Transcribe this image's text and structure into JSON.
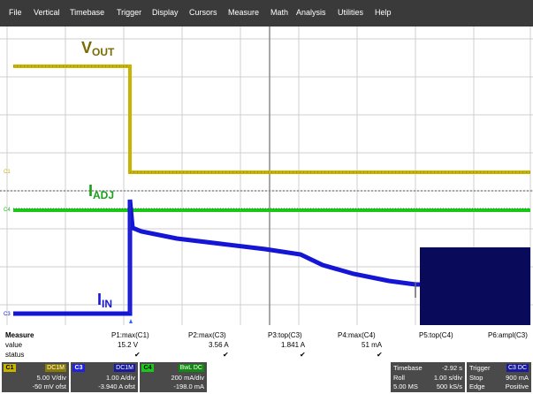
{
  "menu": [
    "File",
    "Vertical",
    "Timebase",
    "Trigger",
    "Display",
    "Cursors",
    "Measure",
    "Math",
    "Analysis",
    "Utilities",
    "Help"
  ],
  "colors": {
    "c1": "#c8b400",
    "c3": "#1010d0",
    "c4": "#19c819",
    "menubar": "#3a3a3a",
    "panel": "#4a4a4a"
  },
  "traces": {
    "vout": {
      "main": "V",
      "sub": "OUT",
      "edge_label": "C1"
    },
    "iadj": {
      "main": "I",
      "sub": "ADJ",
      "edge_label": "C4"
    },
    "iin": {
      "main": "I",
      "sub": "IN",
      "edge_label": "C3"
    }
  },
  "measure": {
    "heading": "Measure",
    "row_value": "value",
    "row_status": "status",
    "params": [
      {
        "name": "P1:max(C1)",
        "value": "15.2 V",
        "status": "✔"
      },
      {
        "name": "P2:max(C3)",
        "value": "3.56 A",
        "status": "✔"
      },
      {
        "name": "P3:top(C3)",
        "value": "1.841 A",
        "status": "✔"
      },
      {
        "name": "P4:max(C4)",
        "value": "51 mA",
        "status": "✔"
      },
      {
        "name": "P5:top(C4)",
        "value": "",
        "status": ""
      },
      {
        "name": "P6:ampl(C3)",
        "value": "",
        "status": ""
      }
    ]
  },
  "channels": [
    {
      "tag": "C1",
      "chip": "DC1M",
      "vdiv": "5.00 V/div",
      "offset": "-50 mV ofst"
    },
    {
      "tag": "C3",
      "chip": "DC1M",
      "vdiv": "1.00 A/div",
      "offset": "-3.940 A ofst"
    },
    {
      "tag": "C4",
      "chip": "BwL DC",
      "vdiv": "200 mA/div",
      "offset": "-198.0 mA"
    }
  ],
  "timebase": {
    "label": "Timebase",
    "delay": "-2.92 s",
    "mode": "Roll",
    "tdiv": "1.00 s/div",
    "samples": "5.00 MS",
    "rate": "500 kS/s"
  },
  "trigger": {
    "label": "Trigger",
    "chip": "C3 DC",
    "state": "Stop",
    "level": "900 mA",
    "type": "Edge",
    "slope": "Positive"
  }
}
